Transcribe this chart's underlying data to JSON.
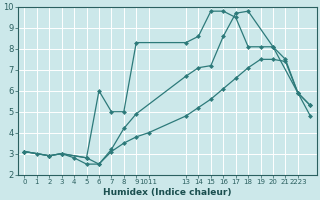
{
  "xlabel": "Humidex (Indice chaleur)",
  "background_color": "#cce8ea",
  "grid_color": "#ffffff",
  "line_color": "#2d7a7a",
  "ylim": [
    2,
    10
  ],
  "xlim": [
    -0.5,
    23.5
  ],
  "curve1_x": [
    0,
    1,
    2,
    3,
    4,
    5,
    6,
    7,
    8,
    9,
    10,
    13,
    14,
    15,
    16,
    17,
    18,
    19,
    20,
    21,
    22,
    23
  ],
  "curve1_y": [
    3.1,
    3.0,
    2.9,
    3.0,
    2.8,
    2.5,
    2.5,
    3.1,
    3.5,
    3.8,
    4.0,
    4.8,
    5.2,
    5.6,
    6.1,
    6.6,
    7.1,
    7.5,
    7.5,
    7.4,
    5.9,
    4.8
  ],
  "curve2_x": [
    0,
    2,
    3,
    5,
    6,
    7,
    8,
    9,
    13,
    14,
    15,
    16,
    17,
    18,
    20,
    21,
    22,
    23
  ],
  "curve2_y": [
    3.1,
    2.9,
    3.0,
    2.8,
    2.5,
    3.2,
    4.2,
    4.9,
    6.7,
    7.1,
    7.2,
    8.6,
    9.7,
    9.8,
    8.1,
    7.5,
    5.9,
    5.3
  ],
  "curve3_x": [
    0,
    2,
    3,
    5,
    6,
    7,
    8,
    9,
    13,
    14,
    15,
    16,
    17,
    18,
    19,
    20,
    22,
    23
  ],
  "curve3_y": [
    3.1,
    2.9,
    3.0,
    2.8,
    6.0,
    5.0,
    5.0,
    8.3,
    8.3,
    8.6,
    9.8,
    9.8,
    9.5,
    8.1,
    8.1,
    8.1,
    5.9,
    5.3
  ],
  "xtick_positions": [
    0,
    1,
    2,
    3,
    4,
    5,
    6,
    7,
    8,
    9,
    10,
    13,
    14,
    15,
    16,
    17,
    18,
    19,
    20,
    21,
    22
  ],
  "xtick_labels": [
    "0",
    "1",
    "2",
    "3",
    "4",
    "5",
    "6",
    "7",
    "8",
    "9",
    "1011",
    "13",
    "14",
    "15",
    "16",
    "17",
    "18",
    "19",
    "20",
    "21",
    "2223"
  ]
}
